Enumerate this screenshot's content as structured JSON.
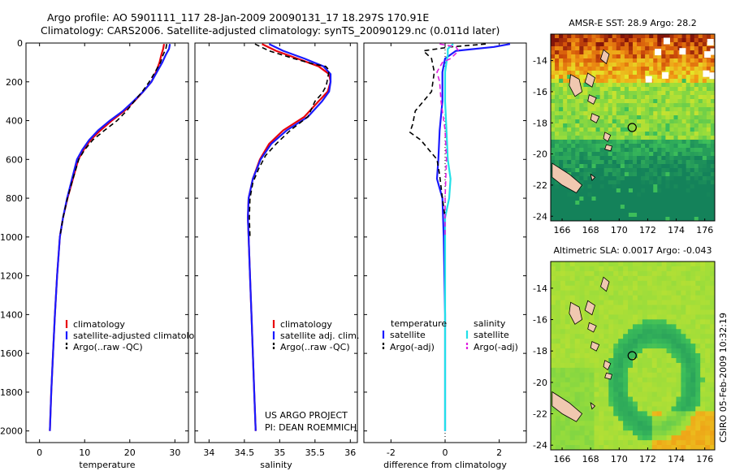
{
  "header": {
    "line1": "Argo profile: AO 5901111_117 28-Jan-2009 20090131_17 18.297S 170.91E",
    "line2": "Climatology: CARS2006. Satellite-adjusted climatology: synTS_20090129.nc (0.011d later)"
  },
  "footer": {
    "project": "US ARGO PROJECT",
    "pi": "PI: DEAN ROEMMICH",
    "stamp": "CSIRO 05-Feb-2009 10:32:19"
  },
  "colors": {
    "climatology": "#e8000b",
    "satellite": "#1a1aff",
    "argo": "#000000",
    "sat_salinity": "#22e0e8",
    "argo_salinity": "#e020e0"
  },
  "chart_data": [
    {
      "type": "line",
      "id": "temperature",
      "xlabel": "temperature",
      "xlim": [
        -3,
        33
      ],
      "ylim": [
        2060,
        0
      ],
      "xticks": [
        0,
        10,
        20,
        30
      ],
      "yticks": [
        0,
        200,
        400,
        600,
        800,
        1000,
        1200,
        1400,
        1600,
        1800,
        2000
      ],
      "legend": [
        "climatology",
        "satellite-adjusted climatology",
        "Argo(..raw -QC)"
      ],
      "series": [
        {
          "name": "climatology",
          "color_key": "climatology",
          "dash": false,
          "points": [
            [
              27.6,
              5
            ],
            [
              27.4,
              30
            ],
            [
              27.0,
              60
            ],
            [
              26.6,
              100
            ],
            [
              25.8,
              150
            ],
            [
              24.8,
              200
            ],
            [
              23.0,
              250
            ],
            [
              21.0,
              300
            ],
            [
              18.8,
              350
            ],
            [
              16.0,
              400
            ],
            [
              13.5,
              450
            ],
            [
              11.3,
              500
            ],
            [
              9.8,
              550
            ],
            [
              8.6,
              600
            ],
            [
              7.4,
              700
            ],
            [
              6.2,
              800
            ],
            [
              5.2,
              900
            ],
            [
              4.5,
              1000
            ],
            [
              3.9,
              1200
            ],
            [
              3.4,
              1400
            ],
            [
              3.0,
              1600
            ],
            [
              2.6,
              1800
            ],
            [
              2.3,
              2000
            ]
          ]
        },
        {
          "name": "satellite-adjusted climatology",
          "color_key": "satellite",
          "dash": false,
          "points": [
            [
              28.9,
              5
            ],
            [
              28.7,
              30
            ],
            [
              28.0,
              60
            ],
            [
              27.2,
              100
            ],
            [
              26.0,
              150
            ],
            [
              24.8,
              200
            ],
            [
              23.0,
              250
            ],
            [
              20.8,
              300
            ],
            [
              18.5,
              350
            ],
            [
              15.6,
              400
            ],
            [
              13.0,
              450
            ],
            [
              11.0,
              500
            ],
            [
              9.5,
              550
            ],
            [
              8.3,
              600
            ],
            [
              7.2,
              700
            ],
            [
              6.1,
              800
            ],
            [
              5.2,
              900
            ],
            [
              4.5,
              1000
            ],
            [
              3.9,
              1200
            ],
            [
              3.4,
              1400
            ],
            [
              3.0,
              1600
            ],
            [
              2.6,
              1800
            ],
            [
              2.3,
              2000
            ]
          ]
        },
        {
          "name": "Argo(..raw -QC)",
          "color_key": "argo",
          "dash": true,
          "points": [
            [
              28.2,
              5
            ],
            [
              28.0,
              30
            ],
            [
              27.4,
              60
            ],
            [
              26.8,
              100
            ],
            [
              25.6,
              150
            ],
            [
              24.3,
              200
            ],
            [
              22.8,
              250
            ],
            [
              21.0,
              300
            ],
            [
              19.3,
              350
            ],
            [
              17.2,
              400
            ],
            [
              14.4,
              450
            ],
            [
              11.8,
              500
            ],
            [
              10.0,
              550
            ],
            [
              8.7,
              600
            ],
            [
              7.4,
              700
            ],
            [
              6.2,
              800
            ],
            [
              5.2,
              900
            ],
            [
              4.5,
              1000
            ]
          ]
        }
      ]
    },
    {
      "type": "line",
      "id": "salinity",
      "xlabel": "salinity",
      "xlim": [
        33.8,
        36.1
      ],
      "ylim": [
        2060,
        0
      ],
      "xticks": [
        34,
        34.5,
        35,
        35.5,
        36
      ],
      "yticks": [
        0,
        200,
        400,
        600,
        800,
        1000,
        1200,
        1400,
        1600,
        1800,
        2000
      ],
      "legend": [
        "climatology",
        "satellite adj. clim.",
        "Argo(..raw -QC)"
      ],
      "series": [
        {
          "name": "climatology",
          "color_key": "climatology",
          "dash": false,
          "points": [
            [
              34.75,
              5
            ],
            [
              34.95,
              40
            ],
            [
              35.25,
              80
            ],
            [
              35.55,
              120
            ],
            [
              35.7,
              160
            ],
            [
              35.72,
              200
            ],
            [
              35.68,
              250
            ],
            [
              35.55,
              300
            ],
            [
              35.35,
              380
            ],
            [
              35.05,
              450
            ],
            [
              34.85,
              520
            ],
            [
              34.72,
              600
            ],
            [
              34.62,
              700
            ],
            [
              34.56,
              800
            ],
            [
              34.55,
              900
            ],
            [
              34.56,
              1000
            ],
            [
              34.58,
              1200
            ],
            [
              34.6,
              1400
            ],
            [
              34.62,
              1600
            ],
            [
              34.64,
              1800
            ],
            [
              34.66,
              2000
            ]
          ]
        },
        {
          "name": "satellite adj. clim.",
          "color_key": "satellite",
          "dash": false,
          "points": [
            [
              34.85,
              5
            ],
            [
              35.05,
              40
            ],
            [
              35.35,
              80
            ],
            [
              35.62,
              120
            ],
            [
              35.72,
              160
            ],
            [
              35.72,
              200
            ],
            [
              35.7,
              250
            ],
            [
              35.6,
              300
            ],
            [
              35.4,
              380
            ],
            [
              35.1,
              450
            ],
            [
              34.88,
              520
            ],
            [
              34.73,
              600
            ],
            [
              34.62,
              700
            ],
            [
              34.56,
              800
            ],
            [
              34.55,
              900
            ],
            [
              34.56,
              1000
            ],
            [
              34.58,
              1200
            ],
            [
              34.6,
              1400
            ],
            [
              34.62,
              1600
            ],
            [
              34.64,
              1800
            ],
            [
              34.66,
              2000
            ]
          ]
        },
        {
          "name": "Argo(..raw -QC)",
          "color_key": "argo",
          "dash": true,
          "points": [
            [
              34.65,
              5
            ],
            [
              34.85,
              40
            ],
            [
              35.2,
              80
            ],
            [
              35.5,
              110
            ],
            [
              35.65,
              120
            ],
            [
              35.7,
              140
            ],
            [
              35.68,
              180
            ],
            [
              35.66,
              220
            ],
            [
              35.6,
              260
            ],
            [
              35.5,
              300
            ],
            [
              35.4,
              380
            ],
            [
              35.15,
              450
            ],
            [
              34.95,
              520
            ],
            [
              34.8,
              580
            ],
            [
              34.7,
              650
            ],
            [
              34.62,
              720
            ],
            [
              34.58,
              800
            ],
            [
              34.57,
              900
            ],
            [
              34.58,
              1000
            ]
          ]
        }
      ]
    },
    {
      "type": "line",
      "id": "difference",
      "xlabel": "difference from climatology",
      "xlim": [
        -3,
        3
      ],
      "ylim": [
        2060,
        0
      ],
      "xticks": [
        -2,
        0,
        2
      ],
      "yticks": [
        0,
        200,
        400,
        600,
        800,
        1000,
        1200,
        1400,
        1600,
        1800,
        2000
      ],
      "legend_headers": [
        "temperature",
        "salinity"
      ],
      "legend": [
        "satellite",
        "Argo(-adj)",
        "satellite",
        "Argo(-adj)"
      ],
      "series": [
        {
          "name": "temperature satellite",
          "color_key": "satellite",
          "dash": false,
          "points": [
            [
              2.4,
              5
            ],
            [
              1.8,
              20
            ],
            [
              0.4,
              40
            ],
            [
              0.0,
              80
            ],
            [
              -0.1,
              150
            ],
            [
              -0.1,
              300
            ],
            [
              -0.2,
              450
            ],
            [
              -0.25,
              600
            ],
            [
              -0.3,
              700
            ],
            [
              -0.1,
              800
            ],
            [
              -0.05,
              1000
            ],
            [
              0,
              1400
            ],
            [
              0,
              2000
            ]
          ]
        },
        {
          "name": "temperature Argo(-adj)",
          "color_key": "argo",
          "dash": true,
          "points": [
            [
              1.5,
              5
            ],
            [
              0.2,
              20
            ],
            [
              -0.8,
              40
            ],
            [
              -0.5,
              80
            ],
            [
              -0.4,
              150
            ],
            [
              -0.5,
              250
            ],
            [
              -0.8,
              300
            ],
            [
              -1.1,
              350
            ],
            [
              -1.2,
              420
            ],
            [
              -1.3,
              460
            ],
            [
              -0.9,
              500
            ],
            [
              -0.6,
              550
            ],
            [
              -0.3,
              600
            ],
            [
              -0.2,
              680
            ],
            [
              -0.1,
              800
            ],
            [
              0,
              900
            ]
          ]
        },
        {
          "name": "salinity satellite",
          "color_key": "sat_salinity",
          "dash": false,
          "points": [
            [
              0.3,
              5
            ],
            [
              0.1,
              30
            ],
            [
              0.1,
              60
            ],
            [
              0.05,
              100
            ],
            [
              0.0,
              150
            ],
            [
              0.0,
              300
            ],
            [
              0.05,
              450
            ],
            [
              0.1,
              600
            ],
            [
              0.2,
              700
            ],
            [
              0.15,
              800
            ],
            [
              0.0,
              900
            ],
            [
              0,
              1400
            ],
            [
              0,
              2000
            ]
          ]
        },
        {
          "name": "salinity Argo(-adj)",
          "color_key": "argo_salinity",
          "dash": true,
          "points": [
            [
              -0.2,
              5
            ],
            [
              0.4,
              20
            ],
            [
              0.5,
              40
            ],
            [
              0.2,
              80
            ],
            [
              -0.1,
              100
            ],
            [
              -0.3,
              150
            ],
            [
              -0.2,
              200
            ],
            [
              -0.15,
              300
            ],
            [
              0.0,
              450
            ],
            [
              0.05,
              600
            ],
            [
              0.0,
              800
            ],
            [
              0,
              1000
            ]
          ]
        }
      ]
    }
  ],
  "maps": [
    {
      "id": "sst",
      "title": "AMSR-E SST: 28.9 Argo: 28.2",
      "xticks": [
        166,
        168,
        170,
        172,
        174,
        176
      ],
      "yticks": [
        -14,
        -16,
        -18,
        -20,
        -22,
        -24
      ],
      "xlim": [
        165.2,
        176.7
      ],
      "ylim": [
        -24.3,
        -12.3
      ],
      "marker": [
        170.91,
        -18.3
      ]
    },
    {
      "id": "sla",
      "title": "Altimetric SLA: 0.0017 Argo: -0.043",
      "xticks": [
        166,
        168,
        170,
        172,
        174,
        176
      ],
      "yticks": [
        -14,
        -16,
        -18,
        -20,
        -22,
        -24
      ],
      "xlim": [
        165.2,
        176.7
      ],
      "ylim": [
        -24.3,
        -12.3
      ],
      "marker": [
        170.91,
        -18.3
      ]
    }
  ]
}
